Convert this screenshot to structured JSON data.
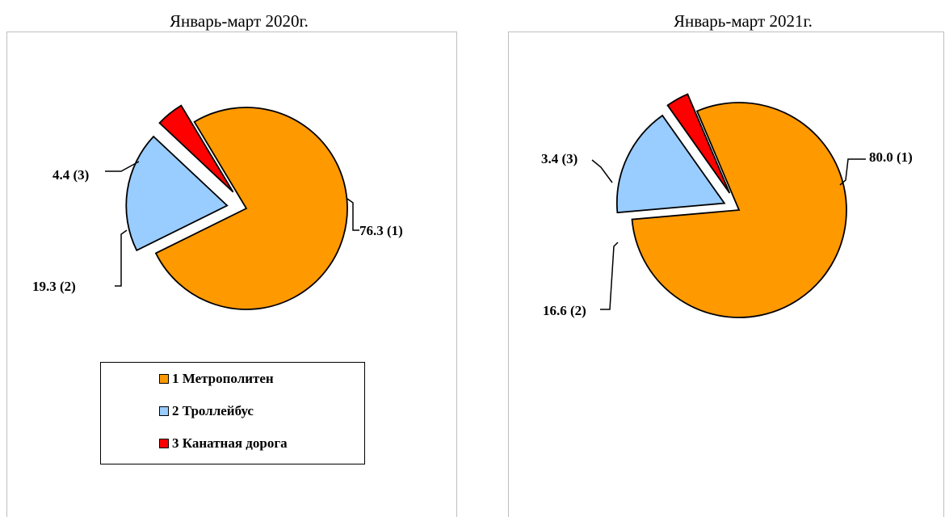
{
  "chart_data": [
    {
      "type": "pie",
      "title": "Январь-март 2020г.",
      "slices": [
        {
          "name": "1 Метрополитен",
          "value": 76.3,
          "label": "76.3 (1)",
          "color": "#ff9900"
        },
        {
          "name": "2 Троллейбус",
          "value": 19.3,
          "label": "19.3 (2)",
          "color": "#99ccff"
        },
        {
          "name": "3 Канатная дорога",
          "value": 4.4,
          "label": "4.4 (3)",
          "color": "#ff0000"
        }
      ],
      "legend": "bottom"
    },
    {
      "type": "pie",
      "title": "Январь-март 2021г.",
      "slices": [
        {
          "name": "1 Метрополитен",
          "value": 80.0,
          "label": "80.0 (1)",
          "color": "#ff9900"
        },
        {
          "name": "2 Троллейбус",
          "value": 16.6,
          "label": "16.6 (2)",
          "color": "#99ccff"
        },
        {
          "name": "3 Канатная дорога",
          "value": 3.4,
          "label": "3.4 (3)",
          "color": "#ff0000"
        }
      ]
    }
  ],
  "legend": {
    "items": [
      {
        "label": "1 Метрополитен",
        "color": "#ff9900"
      },
      {
        "label": "2 Троллейбус",
        "color": "#99ccff"
      },
      {
        "label": "3 Канатная дорога",
        "color": "#ff0000"
      }
    ]
  }
}
